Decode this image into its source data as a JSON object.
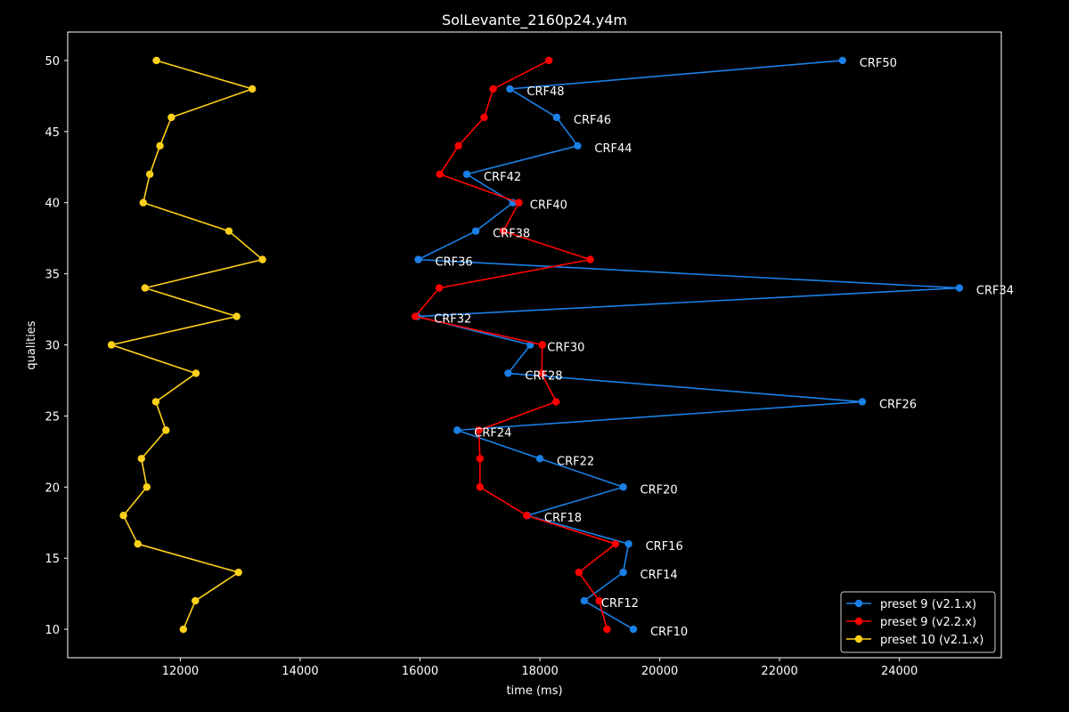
{
  "chart_data": {
    "type": "line",
    "title": "SolLevante_2160p24.y4m",
    "xlabel": "time (ms)",
    "ylabel": "qualities",
    "xlim": [
      10120,
      25700
    ],
    "ylim": [
      8,
      52
    ],
    "xticks": [
      12000,
      14000,
      16000,
      18000,
      20000,
      22000,
      24000
    ],
    "yticks": [
      10,
      15,
      20,
      25,
      30,
      35,
      40,
      45,
      50
    ],
    "legend_position": "bottom-right",
    "series": [
      {
        "name": "preset 9 (v2.1.x)",
        "color": "#1a80e6",
        "points": [
          {
            "x": 23050,
            "y": 50
          },
          {
            "x": 17500,
            "y": 48
          },
          {
            "x": 18280,
            "y": 46
          },
          {
            "x": 18630,
            "y": 44
          },
          {
            "x": 16780,
            "y": 42
          },
          {
            "x": 17550,
            "y": 40
          },
          {
            "x": 16930,
            "y": 38
          },
          {
            "x": 15970,
            "y": 36
          },
          {
            "x": 25000,
            "y": 34
          },
          {
            "x": 15950,
            "y": 32
          },
          {
            "x": 17840,
            "y": 30
          },
          {
            "x": 17470,
            "y": 28
          },
          {
            "x": 23380,
            "y": 26
          },
          {
            "x": 16620,
            "y": 24
          },
          {
            "x": 18000,
            "y": 22
          },
          {
            "x": 19390,
            "y": 20
          },
          {
            "x": 17790,
            "y": 18
          },
          {
            "x": 19480,
            "y": 16
          },
          {
            "x": 19390,
            "y": 14
          },
          {
            "x": 18740,
            "y": 12
          },
          {
            "x": 19560,
            "y": 10
          }
        ]
      },
      {
        "name": "preset 9 (v2.2.x)",
        "color": "#ff0000",
        "points": [
          {
            "x": 18150,
            "y": 50
          },
          {
            "x": 17220,
            "y": 48
          },
          {
            "x": 17070,
            "y": 46
          },
          {
            "x": 16640,
            "y": 44
          },
          {
            "x": 16330,
            "y": 42
          },
          {
            "x": 17650,
            "y": 40
          },
          {
            "x": 17390,
            "y": 38
          },
          {
            "x": 18840,
            "y": 36
          },
          {
            "x": 16320,
            "y": 34
          },
          {
            "x": 15920,
            "y": 32
          },
          {
            "x": 18040,
            "y": 30
          },
          {
            "x": 18030,
            "y": 28
          },
          {
            "x": 18270,
            "y": 26
          },
          {
            "x": 16980,
            "y": 24
          },
          {
            "x": 17000,
            "y": 22
          },
          {
            "x": 17000,
            "y": 20
          },
          {
            "x": 17780,
            "y": 18
          },
          {
            "x": 19260,
            "y": 16
          },
          {
            "x": 18650,
            "y": 14
          },
          {
            "x": 18990,
            "y": 12
          },
          {
            "x": 19120,
            "y": 10
          }
        ]
      },
      {
        "name": "preset 10 (v2.1.x)",
        "color": "#ffd11a",
        "points": [
          {
            "x": 11600,
            "y": 50
          },
          {
            "x": 13200,
            "y": 48
          },
          {
            "x": 11850,
            "y": 46
          },
          {
            "x": 11660,
            "y": 44
          },
          {
            "x": 11490,
            "y": 42
          },
          {
            "x": 11380,
            "y": 40
          },
          {
            "x": 12810,
            "y": 38
          },
          {
            "x": 13370,
            "y": 36
          },
          {
            "x": 11410,
            "y": 34
          },
          {
            "x": 12940,
            "y": 32
          },
          {
            "x": 10850,
            "y": 30
          },
          {
            "x": 12260,
            "y": 28
          },
          {
            "x": 11590,
            "y": 26
          },
          {
            "x": 11760,
            "y": 24
          },
          {
            "x": 11350,
            "y": 22
          },
          {
            "x": 11440,
            "y": 20
          },
          {
            "x": 11050,
            "y": 18
          },
          {
            "x": 11290,
            "y": 16
          },
          {
            "x": 12970,
            "y": 14
          },
          {
            "x": 12250,
            "y": 12
          },
          {
            "x": 12050,
            "y": 10
          }
        ]
      }
    ],
    "annotations": [
      {
        "text": "CRF50",
        "x": 23050,
        "y": 50
      },
      {
        "text": "CRF48",
        "x": 17500,
        "y": 48
      },
      {
        "text": "CRF46",
        "x": 18280,
        "y": 46
      },
      {
        "text": "CRF44",
        "x": 18630,
        "y": 44
      },
      {
        "text": "CRF42",
        "x": 16780,
        "y": 42
      },
      {
        "text": "CRF40",
        "x": 17550,
        "y": 40
      },
      {
        "text": "CRF38",
        "x": 16930,
        "y": 38
      },
      {
        "text": "CRF36",
        "x": 15970,
        "y": 36
      },
      {
        "text": "CRF34",
        "x": 25000,
        "y": 34
      },
      {
        "text": "CRF32",
        "x": 15950,
        "y": 32
      },
      {
        "text": "CRF30",
        "x": 17840,
        "y": 30
      },
      {
        "text": "CRF28",
        "x": 17470,
        "y": 28
      },
      {
        "text": "CRF26",
        "x": 23380,
        "y": 26
      },
      {
        "text": "CRF24",
        "x": 16620,
        "y": 24
      },
      {
        "text": "CRF22",
        "x": 18000,
        "y": 22
      },
      {
        "text": "CRF20",
        "x": 19390,
        "y": 20
      },
      {
        "text": "CRF18",
        "x": 17790,
        "y": 18
      },
      {
        "text": "CRF16",
        "x": 19480,
        "y": 16
      },
      {
        "text": "CRF14",
        "x": 19390,
        "y": 14
      },
      {
        "text": "CRF12",
        "x": 18740,
        "y": 12
      },
      {
        "text": "CRF10",
        "x": 19560,
        "y": 10
      }
    ]
  }
}
